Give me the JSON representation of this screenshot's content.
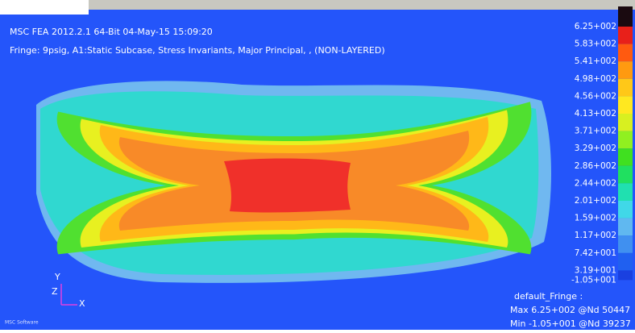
{
  "header": {
    "line1": "MSC FEA 2012.2.1 64-Bit 04-May-15 15:09:20",
    "line2": "Fringe: 9psig, A1:Static Subcase, Stress Invariants, Major Principal, , (NON-LAYERED)"
  },
  "legend": {
    "labels": [
      "6.25+002",
      "5.83+002",
      "5.41+002",
      "4.98+002",
      "4.56+002",
      "4.13+002",
      "3.71+002",
      "3.29+002",
      "2.86+002",
      "2.44+002",
      "2.01+002",
      "1.59+002",
      "1.17+002",
      "7.42+001",
      "3.19+001",
      "-1.05+001"
    ],
    "colors": [
      "#1a0a10",
      "#e8201a",
      "#ff5a10",
      "#ff9a10",
      "#ffc818",
      "#ffe820",
      "#d8f020",
      "#90f020",
      "#40e020",
      "#20e060",
      "#20e0b0",
      "#40d8e8",
      "#60b8f0",
      "#4090f0",
      "#2060f0",
      "#1a40e0"
    ]
  },
  "triad": {
    "y": "Y",
    "z": "Z",
    "x": "X"
  },
  "footer": {
    "title": "default_Fringe :",
    "max": "Max 6.25+002 @Nd 50447",
    "min": "Min -1.05+001 @Nd 39237"
  },
  "logo": "MSC Software"
}
